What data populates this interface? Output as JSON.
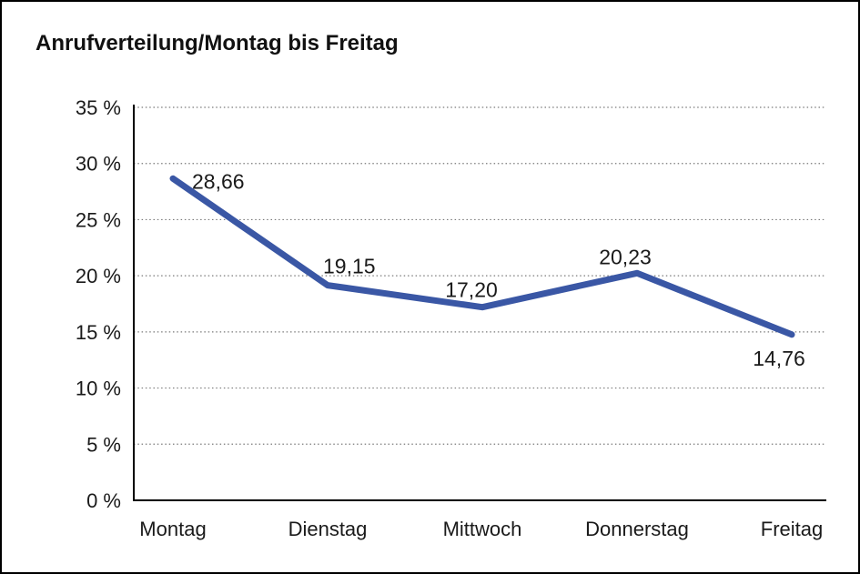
{
  "chart_data": {
    "type": "line",
    "title": "Anrufverteilung/Montag bis Freitag",
    "categories": [
      "Montag",
      "Dienstag",
      "Mittwoch",
      "Donnerstag",
      "Freitag"
    ],
    "series": [
      {
        "name": "Anrufverteilung",
        "values": [
          28.66,
          19.15,
          17.2,
          20.23,
          14.76
        ]
      }
    ],
    "data_labels": [
      "28,66",
      "19,15",
      "17,20",
      "20,23",
      "14,76"
    ],
    "ylabel": "",
    "xlabel": "",
    "ylim": [
      0,
      35
    ],
    "ytick_step": 5,
    "ytick_labels": [
      "0 %",
      "5 %",
      "10 %",
      "15 %",
      "20 %",
      "25 %",
      "30 %",
      "35 %"
    ],
    "grid": "horizontal-dotted",
    "legend": "none",
    "colors": {
      "line": "#3A57A5",
      "axis": "#000000",
      "grid": "#7A7A7A",
      "text": "#1A1A1A",
      "background": "#FFFFFF",
      "border": "#000000"
    }
  }
}
